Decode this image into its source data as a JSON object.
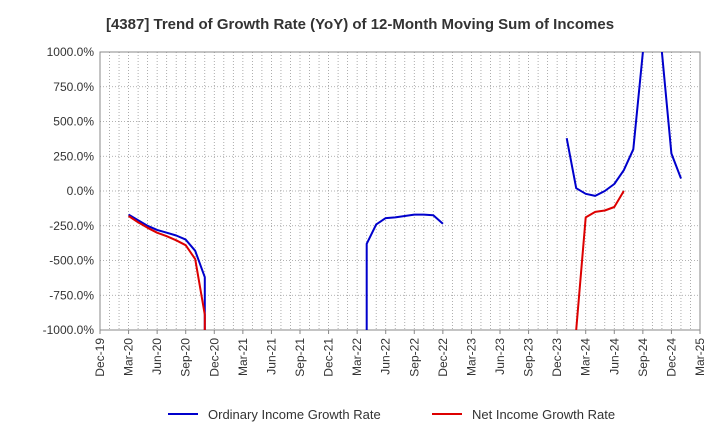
{
  "chart_data": {
    "type": "line",
    "title": "[4387]  Trend of Growth Rate (YoY) of 12-Month Moving Sum of Incomes",
    "xlabel": "",
    "ylabel": "",
    "ylim": [
      -1000,
      1000
    ],
    "yticks": [
      1000,
      750,
      500,
      250,
      0,
      -250,
      -500,
      -750,
      -1000
    ],
    "yticklabels": [
      "1000.0%",
      "750.0%",
      "500.0%",
      "250.0%",
      "0.0%",
      "-250.0%",
      "-500.0%",
      "-750.0%",
      "-1000.0%"
    ],
    "x_categories": [
      "Dec-19",
      "Mar-20",
      "Jun-20",
      "Sep-20",
      "Dec-20",
      "Mar-21",
      "Jun-21",
      "Sep-21",
      "Dec-21",
      "Mar-22",
      "Jun-22",
      "Sep-22",
      "Dec-22",
      "Mar-23",
      "Jun-23",
      "Sep-23",
      "Dec-23",
      "Mar-24",
      "Jun-24",
      "Sep-24",
      "Dec-24",
      "Mar-25"
    ],
    "grid": true,
    "legend_position": "bottom",
    "series": [
      {
        "name": "Ordinary Income Growth Rate",
        "color": "#0000cc",
        "points": [
          {
            "x": "2020-03",
            "y": -170
          },
          {
            "x": "2020-04",
            "y": -210
          },
          {
            "x": "2020-05",
            "y": -250
          },
          {
            "x": "2020-06",
            "y": -280
          },
          {
            "x": "2020-07",
            "y": -300
          },
          {
            "x": "2020-08",
            "y": -320
          },
          {
            "x": "2020-09",
            "y": -350
          },
          {
            "x": "2020-10",
            "y": -430
          },
          {
            "x": "2020-11",
            "y": -620
          },
          {
            "x": "2020-11",
            "y": -1000
          },
          {
            "x": null,
            "y": null
          },
          {
            "x": "2022-04",
            "y": -1000
          },
          {
            "x": "2022-04",
            "y": -380
          },
          {
            "x": "2022-05",
            "y": -240
          },
          {
            "x": "2022-06",
            "y": -195
          },
          {
            "x": "2022-07",
            "y": -190
          },
          {
            "x": "2022-08",
            "y": -180
          },
          {
            "x": "2022-09",
            "y": -170
          },
          {
            "x": "2022-10",
            "y": -170
          },
          {
            "x": "2022-11",
            "y": -175
          },
          {
            "x": "2022-12",
            "y": -235
          },
          {
            "x": null,
            "y": null
          },
          {
            "x": "2024-01",
            "y": 380
          },
          {
            "x": "2024-02",
            "y": 20
          },
          {
            "x": "2024-03",
            "y": -20
          },
          {
            "x": "2024-04",
            "y": -35
          },
          {
            "x": "2024-05",
            "y": 0
          },
          {
            "x": "2024-06",
            "y": 50
          },
          {
            "x": "2024-07",
            "y": 150
          },
          {
            "x": "2024-08",
            "y": 300
          },
          {
            "x": "2024-09",
            "y": 1000
          },
          {
            "x": null,
            "y": null
          },
          {
            "x": "2024-11",
            "y": 1000
          },
          {
            "x": "2024-12",
            "y": 270
          },
          {
            "x": "2025-01",
            "y": 90
          }
        ]
      },
      {
        "name": "Net Income Growth Rate",
        "color": "#dd0000",
        "points": [
          {
            "x": "2020-03",
            "y": -180
          },
          {
            "x": "2020-04",
            "y": -225
          },
          {
            "x": "2020-05",
            "y": -265
          },
          {
            "x": "2020-06",
            "y": -300
          },
          {
            "x": "2020-07",
            "y": -325
          },
          {
            "x": "2020-08",
            "y": -355
          },
          {
            "x": "2020-09",
            "y": -390
          },
          {
            "x": "2020-10",
            "y": -490
          },
          {
            "x": "2020-11",
            "y": -890
          },
          {
            "x": "2020-11",
            "y": -1000
          },
          {
            "x": null,
            "y": null
          },
          {
            "x": "2024-02",
            "y": -1000
          },
          {
            "x": "2024-03",
            "y": -190
          },
          {
            "x": "2024-04",
            "y": -150
          },
          {
            "x": "2024-05",
            "y": -140
          },
          {
            "x": "2024-06",
            "y": -115
          },
          {
            "x": "2024-07",
            "y": 0
          }
        ]
      }
    ]
  }
}
